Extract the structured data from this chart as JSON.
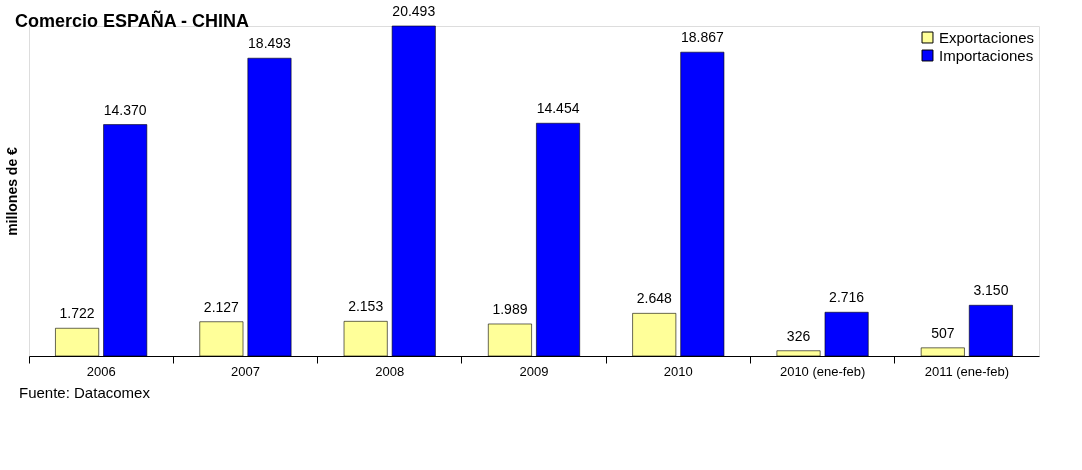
{
  "chart_data": {
    "type": "bar",
    "title": "Comercio ESPAÑA - CHINA",
    "ylabel": "millones de €",
    "categories": [
      "2006",
      "2007",
      "2008",
      "2009",
      "2010",
      "2010 (ene-feb)",
      "2011 (ene-feb)"
    ],
    "series": [
      {
        "name": "Exportaciones",
        "color": "#ffff99",
        "values": [
          1722,
          2127,
          2153,
          1989,
          2648,
          326,
          507
        ],
        "value_labels": [
          "1.722",
          "2.127",
          "2.153",
          "1.989",
          "2.648",
          "326",
          "507"
        ]
      },
      {
        "name": "Importaciones",
        "color": "#0000ff",
        "values": [
          14370,
          18493,
          20493,
          14454,
          18867,
          2716,
          3150
        ],
        "value_labels": [
          "14.370",
          "18.493",
          "20.493",
          "14.454",
          "18.867",
          "2.716",
          "3.150"
        ]
      }
    ],
    "legend": "top right",
    "grid": false,
    "annotations": [
      "Fuente: Datacomex"
    ]
  }
}
